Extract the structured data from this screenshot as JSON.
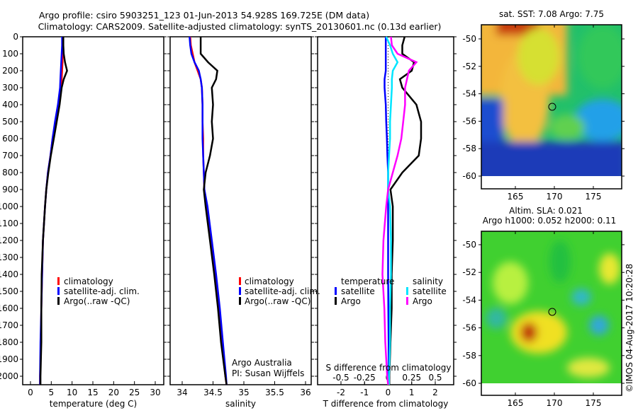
{
  "header": {
    "title_line1": "Argo profile: csiro 5903251_123 01-Jun-2013 54.928S 169.725E (DM data)",
    "title_line2": "Climatology: CARS2009. Satellite-adjusted climatology: synTS_20130601.nc (0.13d earlier)"
  },
  "colors": {
    "climatology": "#ff0000",
    "satellite": "#0000ff",
    "argo": "#000000",
    "s_satellite": "#00e5ff",
    "s_argo": "#ff00ff"
  },
  "chart_data": [
    {
      "type": "line",
      "id": "temperature",
      "xlabel": "temperature (deg C)",
      "xlim": [
        -2,
        31.5
      ],
      "xticks": [
        "0",
        "5",
        "10",
        "15",
        "20",
        "25",
        "30"
      ],
      "xtick_values": [
        0,
        5,
        10,
        15,
        20,
        25,
        30
      ],
      "ylim": [
        0,
        2050
      ],
      "yticks": [
        "0",
        "100",
        "200",
        "300",
        "400",
        "500",
        "600",
        "700",
        "800",
        "900",
        "1000",
        "1100",
        "1200",
        "1300",
        "1400",
        "1500",
        "1600",
        "1700",
        "1800",
        "1900",
        "2000"
      ],
      "legend": [
        "climatology",
        "satellite-adj. clim.",
        "Argo(..raw -QC)"
      ],
      "depth": [
        0,
        50,
        100,
        150,
        200,
        250,
        300,
        400,
        500,
        600,
        700,
        800,
        900,
        1000,
        1200,
        1400,
        1600,
        1800,
        2000,
        2050
      ],
      "series": [
        {
          "name": "climatology",
          "values": [
            7.8,
            7.8,
            7.7,
            7.7,
            7.6,
            7.5,
            7.3,
            6.8,
            6.0,
            5.3,
            4.8,
            4.2,
            3.8,
            3.5,
            3.0,
            2.8,
            2.6,
            2.5,
            2.3,
            2.3
          ]
        },
        {
          "name": "satellite-adj. clim.",
          "values": [
            7.6,
            7.6,
            7.5,
            7.4,
            7.3,
            7.2,
            7.1,
            6.6,
            5.9,
            5.3,
            4.8,
            4.2,
            3.8,
            3.5,
            3.0,
            2.8,
            2.6,
            2.4,
            2.3,
            2.3
          ]
        },
        {
          "name": "Argo(..raw -QC)",
          "values": [
            7.9,
            7.9,
            8.0,
            8.3,
            8.8,
            8.0,
            7.5,
            7.0,
            6.3,
            5.6,
            4.9,
            4.3,
            3.8,
            3.5,
            3.0,
            2.7,
            2.6,
            2.6,
            2.4,
            2.4
          ]
        }
      ]
    },
    {
      "type": "line",
      "id": "salinity",
      "xlabel": "salinity",
      "xlim": [
        33.87,
        36.12
      ],
      "xticks": [
        "34",
        "34.5",
        "35",
        "35.5",
        "36"
      ],
      "xtick_values": [
        34,
        34.5,
        35,
        35.5,
        36
      ],
      "ylim": [
        0,
        2050
      ],
      "legend": [
        "climatology",
        "satellite-adj. clim.",
        "Argo(..raw -QC)"
      ],
      "annotation": [
        "Argo Australia",
        "PI: Susan Wijffels"
      ],
      "depth": [
        0,
        50,
        100,
        150,
        200,
        250,
        300,
        400,
        500,
        600,
        700,
        800,
        900,
        1000,
        1200,
        1400,
        1600,
        1800,
        2000,
        2050
      ],
      "series": [
        {
          "name": "climatology",
          "values": [
            34.13,
            34.14,
            34.17,
            34.2,
            34.25,
            34.3,
            34.32,
            34.33,
            34.33,
            34.34,
            34.34,
            34.35,
            34.36,
            34.4,
            34.47,
            34.54,
            34.6,
            34.65,
            34.7,
            34.72
          ]
        },
        {
          "name": "satellite-adj. clim.",
          "values": [
            34.12,
            34.13,
            34.15,
            34.2,
            34.27,
            34.3,
            34.32,
            34.33,
            34.33,
            34.33,
            34.34,
            34.35,
            34.36,
            34.41,
            34.48,
            34.55,
            34.61,
            34.66,
            34.71,
            34.72
          ]
        },
        {
          "name": "Argo(..raw -QC)",
          "values": [
            34.3,
            34.3,
            34.3,
            34.42,
            34.57,
            34.55,
            34.48,
            34.5,
            34.48,
            34.5,
            34.45,
            34.38,
            34.35,
            34.38,
            34.45,
            34.52,
            34.58,
            34.63,
            34.7,
            34.72
          ]
        }
      ]
    },
    {
      "type": "line",
      "id": "difference",
      "xlabel": "T difference from climatology",
      "x2label": "S difference from climatology",
      "xlim": [
        -2.9,
        2.9
      ],
      "xticks": [
        "-2",
        "-1",
        "0",
        "1",
        "2"
      ],
      "xtick_values": [
        -2,
        -1,
        0,
        1,
        2
      ],
      "x2ticks": [
        "-0.5",
        "-0.25",
        "0",
        "0.25",
        "0.5"
      ],
      "x2tick_values": [
        -0.5,
        -0.25,
        0,
        0.25,
        0.5
      ],
      "legend_titles": [
        "temperature",
        "salinity"
      ],
      "legend": [
        "satellite",
        "Argo",
        "satellite",
        "Argo"
      ],
      "depth": [
        0,
        50,
        100,
        150,
        200,
        250,
        300,
        400,
        500,
        600,
        700,
        800,
        900,
        1000,
        1200,
        1400,
        1600,
        1800,
        2000,
        2050
      ],
      "series": [
        {
          "name": "T satellite",
          "quantity": "T",
          "values": [
            -0.1,
            -0.1,
            -0.1,
            -0.1,
            -0.1,
            -0.15,
            -0.15,
            -0.1,
            -0.08,
            -0.05,
            -0.03,
            0,
            0,
            0,
            0,
            0,
            0.01,
            0.02,
            0.02,
            0.02
          ]
        },
        {
          "name": "T Argo",
          "quantity": "T",
          "values": [
            0.7,
            0.6,
            0.6,
            1.1,
            1.0,
            0.5,
            0.6,
            1.2,
            1.4,
            1.4,
            1.3,
            0.6,
            0.1,
            0.2,
            0.2,
            0.15,
            0.15,
            0.1,
            0.05,
            0.05
          ]
        },
        {
          "name": "S satellite",
          "quantity": "S",
          "values": [
            -0.02,
            0.02,
            0.05,
            0.1,
            0.05,
            0.04,
            0.04,
            0.03,
            0.02,
            0.02,
            0.01,
            0,
            0,
            0.02,
            0.03,
            0.03,
            0.02,
            0.02,
            0.01,
            0.01
          ]
        },
        {
          "name": "S Argo",
          "quantity": "S",
          "values": [
            0.03,
            0.04,
            0.1,
            0.3,
            0.22,
            0.2,
            0.18,
            0.18,
            0.16,
            0.14,
            0.1,
            0.05,
            0,
            -0.02,
            -0.05,
            -0.06,
            -0.04,
            -0.03,
            -0.01,
            0
          ]
        }
      ]
    },
    {
      "type": "heatmap",
      "id": "sst-map",
      "title": "sat. SST: 7.08 Argo: 7.75",
      "xticks": [
        "165",
        "170",
        "175"
      ],
      "xtick_values": [
        165,
        170,
        175
      ],
      "yticks": [
        "-50",
        "-52",
        "-54",
        "-56",
        "-58",
        "-60"
      ],
      "ytick_values": [
        -50,
        -52,
        -54,
        -56,
        -58,
        -60
      ],
      "xlim": [
        160.6,
        178.6
      ],
      "ylim": [
        -60.9,
        -49.0
      ],
      "marker": {
        "lon": 169.725,
        "lat": -54.928
      }
    },
    {
      "type": "heatmap",
      "id": "sla-map",
      "title": "Altim. SLA: 0.021",
      "subtitle": "Argo h1000: 0.052 h2000: 0.11",
      "xticks": [
        "165",
        "170",
        "175"
      ],
      "xtick_values": [
        165,
        170,
        175
      ],
      "yticks": [
        "-50",
        "-52",
        "-54",
        "-56",
        "-58",
        "-60"
      ],
      "ytick_values": [
        -50,
        -52,
        -54,
        -56,
        -58,
        -60
      ],
      "xlim": [
        160.6,
        178.6
      ],
      "ylim": [
        -60.9,
        -49.0
      ],
      "marker": {
        "lon": 169.725,
        "lat": -54.928
      }
    }
  ],
  "footer": {
    "credit": "©IMOS 04-Aug-2017 10:20:28"
  }
}
